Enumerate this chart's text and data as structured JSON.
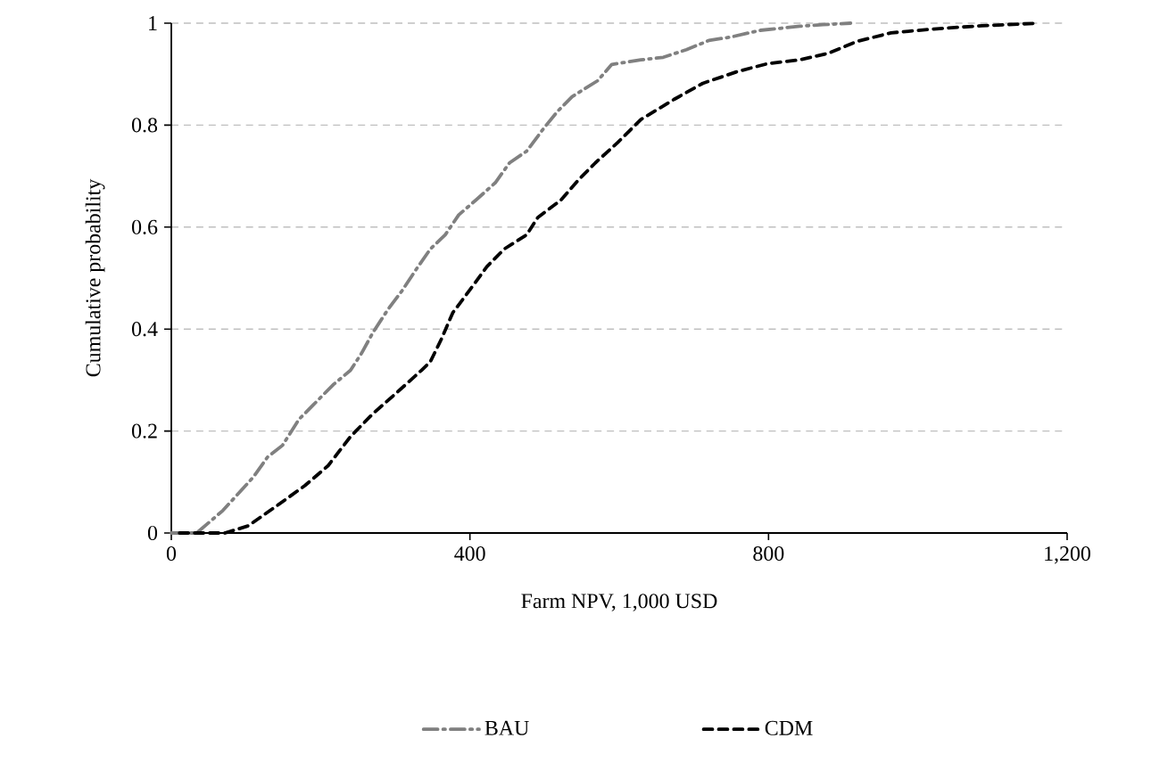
{
  "chart_data": {
    "type": "line",
    "xlabel": "Farm NPV, 1,000 USD",
    "ylabel": "Cumulative probability",
    "xlim": [
      0,
      1200
    ],
    "ylim": [
      0,
      1
    ],
    "xticks": [
      0,
      400,
      800,
      {
        "value": 1200,
        "label": "1,200"
      }
    ],
    "yticks": [
      0,
      0.2,
      0.4,
      0.6,
      0.8,
      1
    ],
    "grid": "y",
    "legend": "bottom",
    "marker": "none",
    "series": [
      {
        "name": "BAU",
        "color": "#808080",
        "line_style": "dashdot",
        "x": [
          0,
          34,
          69,
          110,
          129,
          149,
          171,
          190,
          217,
          240,
          255,
          270,
          290,
          309,
          328,
          347,
          367,
          385,
          408,
          434,
          453,
          476,
          499,
          518,
          537,
          571,
          590,
          629,
          659,
          690,
          720,
          750,
          789,
          842,
          873,
          910
        ],
        "values": [
          0,
          0,
          0.044,
          0.11,
          0.149,
          0.172,
          0.223,
          0.251,
          0.291,
          0.319,
          0.353,
          0.393,
          0.438,
          0.475,
          0.517,
          0.557,
          0.585,
          0.624,
          0.653,
          0.687,
          0.726,
          0.749,
          0.794,
          0.828,
          0.856,
          0.887,
          0.919,
          0.928,
          0.933,
          0.948,
          0.966,
          0.973,
          0.986,
          0.994,
          0.997,
          1
        ]
      },
      {
        "name": "CDM",
        "color": "#000000",
        "line_style": "dashed",
        "x": [
          11,
          72,
          103,
          141,
          179,
          210,
          240,
          270,
          301,
          335,
          347,
          362,
          377,
          400,
          423,
          446,
          476,
          491,
          522,
          545,
          568,
          598,
          629,
          674,
          712,
          758,
          800,
          842,
          880,
          918,
          964,
          1025,
          1086,
          1162
        ],
        "values": [
          0,
          0,
          0.014,
          0.053,
          0.093,
          0.132,
          0.189,
          0.234,
          0.274,
          0.319,
          0.336,
          0.381,
          0.432,
          0.477,
          0.523,
          0.557,
          0.585,
          0.619,
          0.653,
          0.692,
          0.726,
          0.766,
          0.811,
          0.851,
          0.882,
          0.905,
          0.921,
          0.928,
          0.941,
          0.964,
          0.981,
          0.989,
          0.995,
          1
        ]
      }
    ]
  }
}
